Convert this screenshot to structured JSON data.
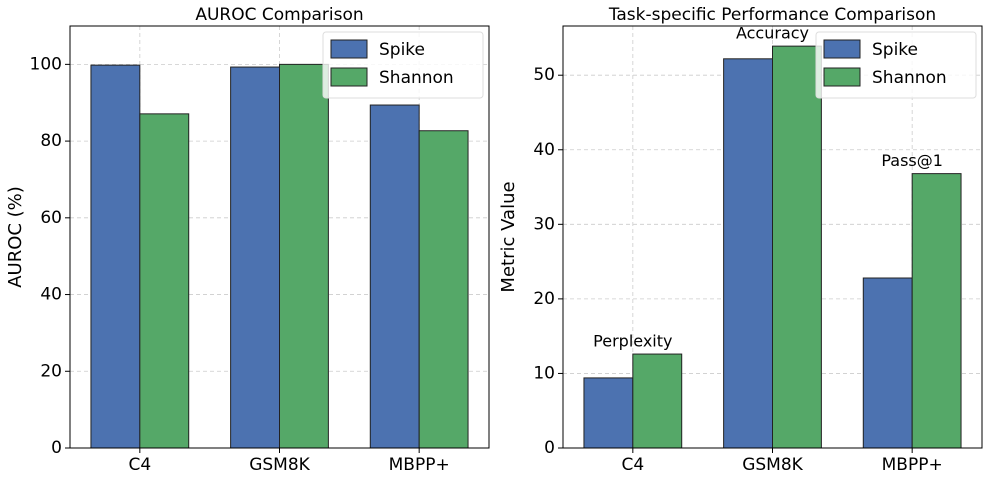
{
  "chart_data": [
    {
      "type": "bar",
      "title": "AUROC Comparison",
      "y_label": "AUROC (%)",
      "categories": [
        "C4",
        "GSM8K",
        "MBPP+"
      ],
      "series": [
        {
          "name": "Spike",
          "color": "#4c72b0",
          "values": [
            99.8,
            99.3,
            89.4
          ]
        },
        {
          "name": "Shannon",
          "color": "#55a868",
          "values": [
            87.1,
            100.0,
            82.7
          ]
        }
      ],
      "ylim": [
        0,
        110
      ],
      "yticks": [
        0,
        20,
        40,
        60,
        80,
        100
      ],
      "grid": true,
      "legend": "upper right"
    },
    {
      "type": "bar",
      "title": "Task-specific Performance Comparison",
      "y_label": "Metric Value",
      "categories": [
        "C4",
        "GSM8K",
        "MBPP+"
      ],
      "annotations": [
        "Perplexity",
        "Accuracy",
        "Pass@1"
      ],
      "series": [
        {
          "name": "Spike",
          "color": "#4c72b0",
          "values": [
            9.4,
            52.2,
            22.8
          ]
        },
        {
          "name": "Shannon",
          "color": "#55a868",
          "values": [
            12.6,
            53.9,
            36.8
          ]
        }
      ],
      "ylim": [
        0,
        56.6
      ],
      "yticks": [
        0,
        10,
        20,
        30,
        40,
        50
      ],
      "grid": true,
      "legend": "upper right"
    }
  ]
}
